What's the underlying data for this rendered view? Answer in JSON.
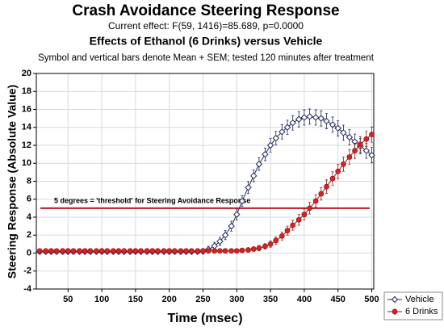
{
  "chart_data": {
    "type": "line",
    "title": "Crash Avoidance Steering Response",
    "subtitle": "Current effect: F(59, 1416)=85.689, p=0.0000",
    "subtitle2": "Effects of Ethanol (6 Drinks) versus Vehicle",
    "note": "Symbol and vertical bars denote Mean + SEM; tested 120 minutes after treatment",
    "x_label": "Time (msec)",
    "y_label": "Steering Response (Absolute Value)",
    "annotation": {
      "value": 5,
      "label": "5 degrees = 'threshold' for Steering Avoidance Response",
      "color": "#c8141e"
    },
    "xlim": [
      3,
      503
    ],
    "xticks": [
      50,
      100,
      150,
      200,
      250,
      300,
      350,
      400,
      450,
      500
    ],
    "ylim": [
      -4,
      20
    ],
    "yticks": [
      -4,
      -2,
      0,
      2,
      4,
      6,
      8,
      10,
      12,
      14,
      16,
      18,
      20
    ],
    "grid": true,
    "legend": "lower right outside",
    "x": [
      8,
      17,
      25,
      33,
      42,
      50,
      58,
      67,
      75,
      83,
      92,
      100,
      108,
      117,
      125,
      133,
      142,
      150,
      158,
      167,
      175,
      183,
      192,
      200,
      208,
      217,
      225,
      233,
      242,
      250,
      258,
      267,
      275,
      283,
      292,
      300,
      308,
      317,
      325,
      333,
      342,
      350,
      358,
      367,
      375,
      383,
      392,
      400,
      408,
      417,
      425,
      433,
      442,
      450,
      458,
      467,
      475,
      483,
      492,
      500
    ],
    "series": [
      {
        "name": "Vehicle",
        "color": "#1f2a5a",
        "marker": "diamond",
        "marker_fill": "#ffffff",
        "values": [
          0.15,
          0.15,
          0.15,
          0.15,
          0.15,
          0.15,
          0.15,
          0.15,
          0.15,
          0.15,
          0.15,
          0.15,
          0.15,
          0.15,
          0.15,
          0.15,
          0.15,
          0.15,
          0.15,
          0.15,
          0.15,
          0.15,
          0.15,
          0.15,
          0.15,
          0.15,
          0.15,
          0.15,
          0.15,
          0.2,
          0.4,
          0.8,
          1.3,
          2.0,
          3.0,
          4.3,
          5.8,
          7.3,
          8.6,
          9.9,
          11.0,
          12.0,
          12.8,
          13.5,
          14.0,
          14.5,
          14.9,
          15.1,
          15.2,
          15.1,
          15.0,
          14.7,
          14.3,
          13.9,
          13.4,
          12.9,
          12.4,
          11.9,
          11.4,
          10.9
        ],
        "errors": [
          0.25,
          0.25,
          0.25,
          0.25,
          0.25,
          0.25,
          0.25,
          0.25,
          0.25,
          0.25,
          0.25,
          0.25,
          0.25,
          0.25,
          0.25,
          0.25,
          0.25,
          0.25,
          0.25,
          0.25,
          0.25,
          0.25,
          0.25,
          0.25,
          0.25,
          0.25,
          0.25,
          0.25,
          0.25,
          0.3,
          0.35,
          0.4,
          0.45,
          0.5,
          0.55,
          0.6,
          0.6,
          0.65,
          0.65,
          0.7,
          0.7,
          0.75,
          0.75,
          0.8,
          0.8,
          0.8,
          0.85,
          0.85,
          0.85,
          0.85,
          0.85,
          0.85,
          0.85,
          0.85,
          0.85,
          0.85,
          0.85,
          0.85,
          0.85,
          0.85
        ]
      },
      {
        "name": "6 Drinks",
        "color": "#8b1a1a",
        "marker": "circle",
        "marker_fill": "#e02020",
        "values": [
          0.25,
          0.25,
          0.25,
          0.25,
          0.25,
          0.25,
          0.25,
          0.25,
          0.25,
          0.25,
          0.25,
          0.25,
          0.25,
          0.25,
          0.25,
          0.25,
          0.25,
          0.25,
          0.25,
          0.25,
          0.25,
          0.25,
          0.25,
          0.25,
          0.25,
          0.25,
          0.25,
          0.25,
          0.25,
          0.25,
          0.25,
          0.25,
          0.25,
          0.25,
          0.25,
          0.25,
          0.3,
          0.35,
          0.45,
          0.55,
          0.75,
          1.0,
          1.4,
          1.9,
          2.5,
          3.1,
          3.7,
          4.3,
          5.0,
          5.8,
          6.6,
          7.4,
          8.3,
          9.1,
          9.9,
          10.7,
          11.4,
          12.1,
          12.7,
          13.2
        ],
        "errors": [
          0.2,
          0.2,
          0.2,
          0.2,
          0.2,
          0.2,
          0.2,
          0.2,
          0.2,
          0.2,
          0.2,
          0.2,
          0.2,
          0.2,
          0.2,
          0.2,
          0.2,
          0.2,
          0.2,
          0.2,
          0.2,
          0.2,
          0.2,
          0.2,
          0.2,
          0.2,
          0.2,
          0.2,
          0.2,
          0.2,
          0.2,
          0.2,
          0.2,
          0.2,
          0.2,
          0.2,
          0.2,
          0.25,
          0.25,
          0.3,
          0.3,
          0.35,
          0.4,
          0.45,
          0.5,
          0.55,
          0.6,
          0.6,
          0.65,
          0.7,
          0.7,
          0.75,
          0.75,
          0.8,
          0.8,
          0.8,
          0.85,
          0.85,
          0.85,
          0.85
        ]
      }
    ]
  }
}
